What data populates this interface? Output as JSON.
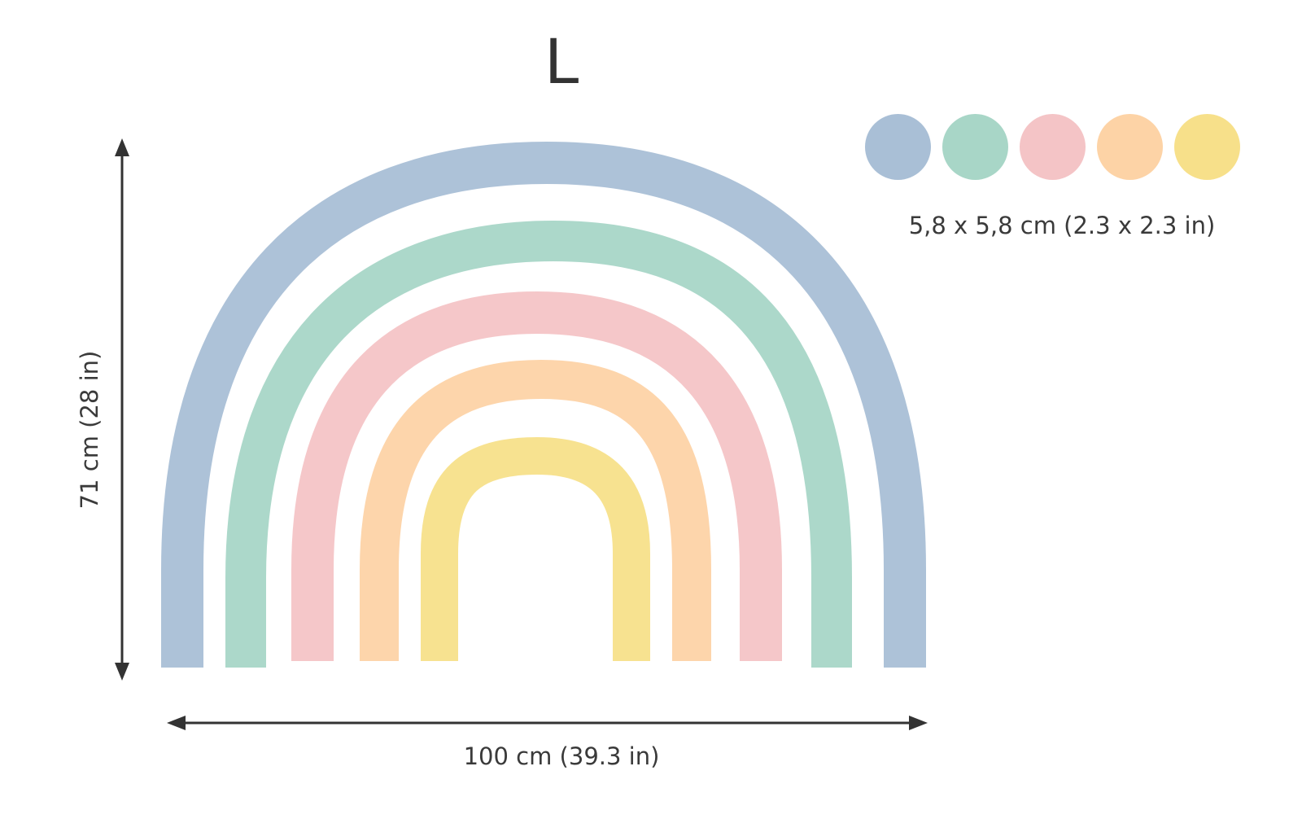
{
  "title": "L",
  "dimensions": {
    "height_label": "71 cm (28 in)",
    "width_label": "100 cm (39.3 in)",
    "dot_size_label": "5,8 x 5,8 cm (2.3 x 2.3 in)"
  },
  "colors": {
    "blue": "#a9bfd6",
    "teal": "#a8d6c7",
    "pink": "#f4c4c6",
    "peach": "#fdd3a6",
    "yellow": "#f7e08a",
    "text": "#3a3a3a",
    "arrow": "#333333"
  },
  "dots": [
    {
      "name": "blue-dot",
      "color": "#a9bfd6"
    },
    {
      "name": "teal-dot",
      "color": "#a8d6c7"
    },
    {
      "name": "pink-dot",
      "color": "#f4c4c6"
    },
    {
      "name": "peach-dot",
      "color": "#fdd3a6"
    },
    {
      "name": "yellow-dot",
      "color": "#f7e08a"
    }
  ]
}
